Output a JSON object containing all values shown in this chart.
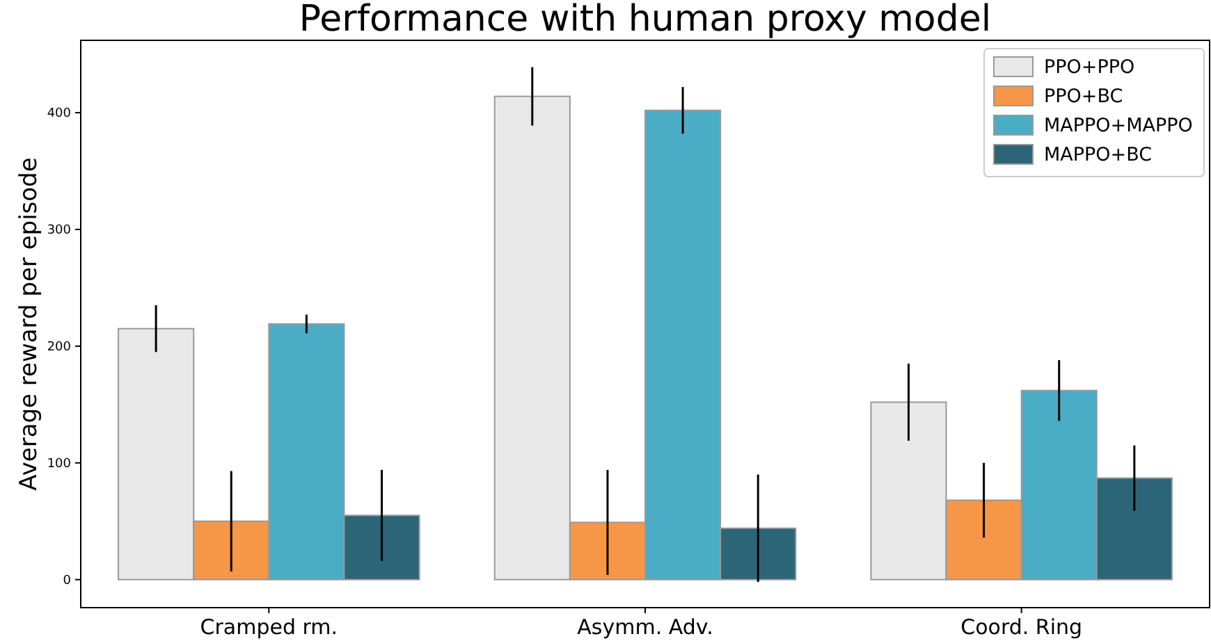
{
  "chart_data": {
    "type": "bar",
    "title": "Performance with human proxy model",
    "ylabel": "Average reward per episode",
    "categories": [
      "Cramped rm.",
      "Asymm. Adv.",
      "Coord. Ring"
    ],
    "series": [
      {
        "name": "PPO+PPO",
        "color": "#e8e8e8",
        "values": [
          215,
          414,
          152
        ],
        "errors": [
          20,
          25,
          33
        ]
      },
      {
        "name": "PPO+BC",
        "color": "#f79646",
        "values": [
          50,
          49,
          68
        ],
        "errors": [
          43,
          45,
          32
        ]
      },
      {
        "name": "MAPPO+MAPPO",
        "color": "#4bacc6",
        "values": [
          219,
          402,
          162
        ],
        "errors": [
          8,
          20,
          26
        ]
      },
      {
        "name": "MAPPO+BC",
        "color": "#2c6577",
        "values": [
          55,
          44,
          87
        ],
        "errors": [
          39,
          46,
          28
        ]
      }
    ],
    "ylim": [
      -24,
      462
    ],
    "yticks": [
      0,
      100,
      200,
      300,
      400
    ],
    "grid": false,
    "legend": "top right"
  }
}
